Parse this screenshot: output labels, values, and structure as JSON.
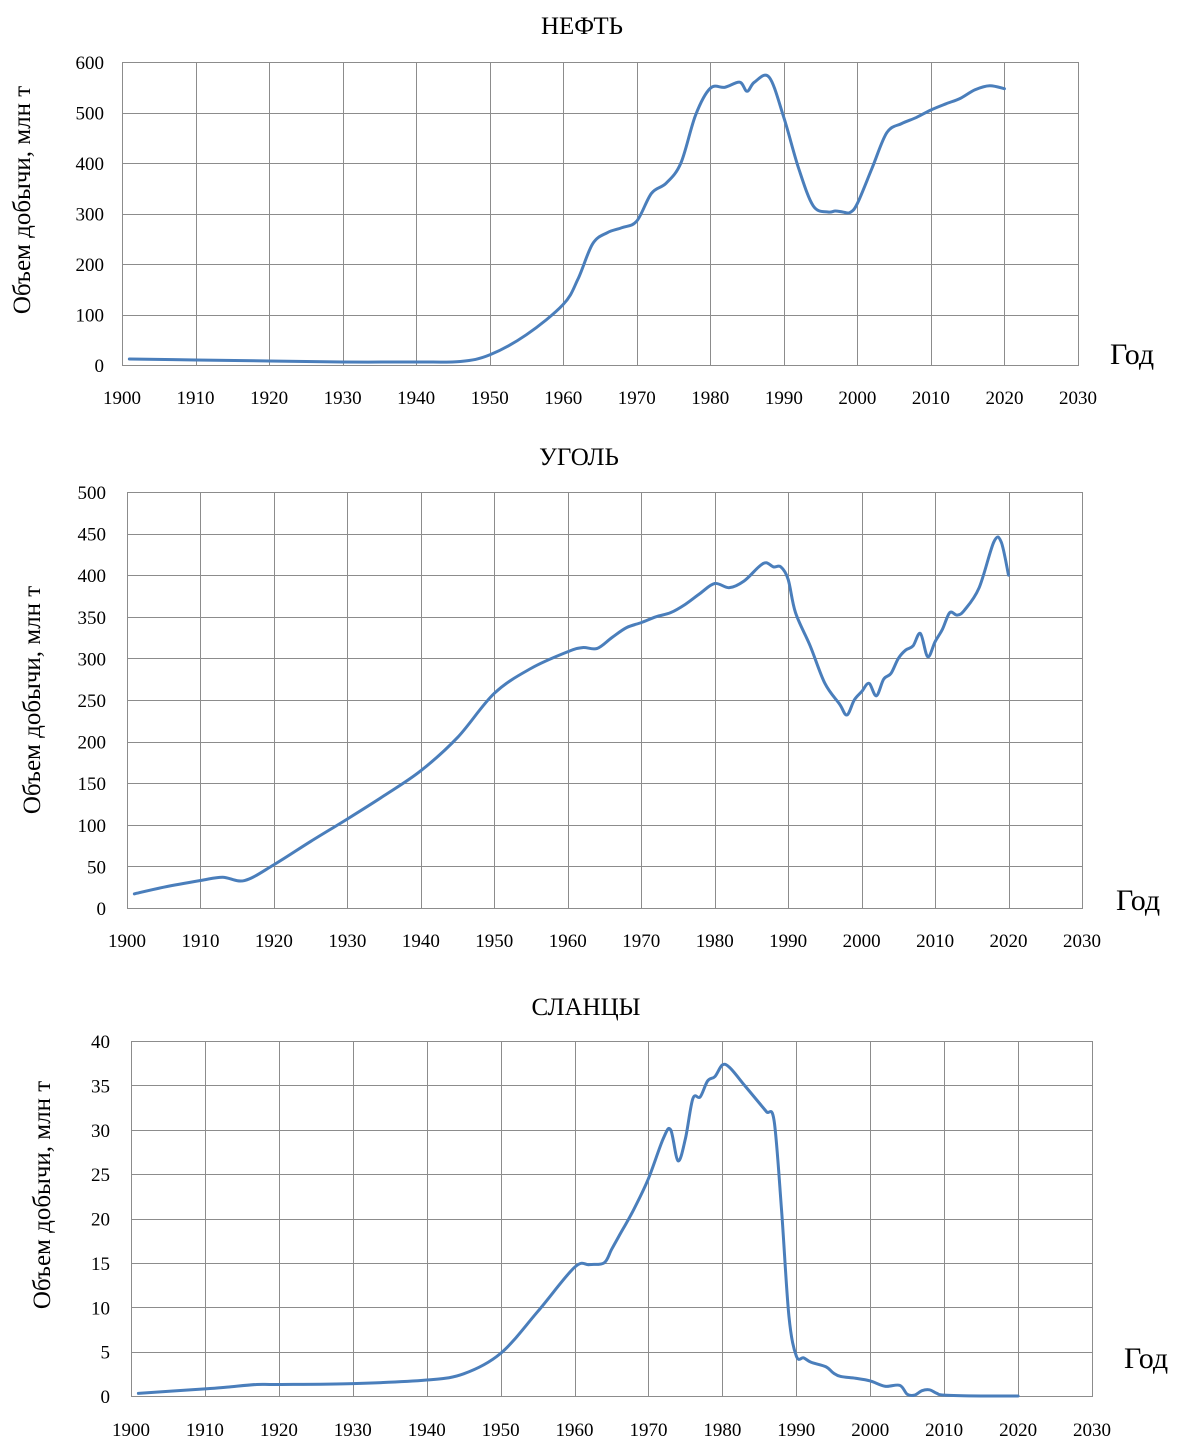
{
  "chart_data": [
    {
      "type": "line",
      "title": "НЕФТЬ",
      "xlabel": "Год",
      "ylabel": "Объем добычи, млн т",
      "xlim": [
        1900,
        2030
      ],
      "ylim": [
        0,
        600
      ],
      "x_ticks": [
        1900,
        1910,
        1920,
        1930,
        1940,
        1950,
        1960,
        1970,
        1980,
        1990,
        2000,
        2010,
        2020,
        2030
      ],
      "y_ticks": [
        0,
        100,
        200,
        300,
        400,
        500,
        600
      ],
      "grid": true,
      "color": "#4a7ebb",
      "series": [
        {
          "x": [
            1901,
            1910,
            1920,
            1930,
            1940,
            1946,
            1950,
            1955,
            1960,
            1962,
            1964,
            1966,
            1968,
            1970,
            1972,
            1974,
            1976,
            1978,
            1980,
            1982,
            1984,
            1985,
            1986,
            1988,
            1990,
            1992,
            1994,
            1996,
            1997,
            1998,
            1999,
            2000,
            2002,
            2004,
            2006,
            2008,
            2010,
            2012,
            2014,
            2016,
            2018,
            2020
          ],
          "y": [
            12,
            10,
            8,
            6,
            6,
            7,
            20,
            60,
            120,
            170,
            240,
            262,
            272,
            285,
            340,
            360,
            400,
            495,
            548,
            550,
            560,
            542,
            560,
            570,
            490,
            390,
            315,
            303,
            305,
            303,
            302,
            320,
            390,
            460,
            478,
            490,
            505,
            517,
            528,
            545,
            553,
            547
          ]
        }
      ]
    },
    {
      "type": "line",
      "title": "УГОЛЬ",
      "xlabel": "Год",
      "ylabel": "Объем добычи, млн т",
      "xlim": [
        1900,
        2030
      ],
      "ylim": [
        0,
        500
      ],
      "x_ticks": [
        1900,
        1910,
        1920,
        1930,
        1940,
        1950,
        1960,
        1970,
        1980,
        1990,
        2000,
        2010,
        2020,
        2030
      ],
      "y_ticks": [
        0,
        50,
        100,
        150,
        200,
        250,
        300,
        350,
        400,
        450,
        500
      ],
      "grid": true,
      "color": "#4a7ebb",
      "series": [
        {
          "x": [
            1901,
            1905,
            1910,
            1913,
            1916,
            1920,
            1925,
            1930,
            1935,
            1940,
            1945,
            1950,
            1955,
            1960,
            1962,
            1964,
            1966,
            1968,
            1970,
            1972,
            1974,
            1976,
            1978,
            1980,
            1982,
            1984,
            1986,
            1987,
            1988,
            1989,
            1990,
            1991,
            1993,
            1995,
            1997,
            1998,
            1999,
            2000,
            2001,
            2002,
            2003,
            2004,
            2005,
            2006,
            2007,
            2008,
            2009,
            2010,
            2011,
            2012,
            2013,
            2014,
            2016,
            2018,
            2019,
            2020
          ],
          "y": [
            17,
            25,
            33,
            37,
            33,
            52,
            80,
            107,
            135,
            165,
            205,
            258,
            288,
            308,
            313,
            312,
            325,
            337,
            343,
            350,
            355,
            365,
            378,
            390,
            385,
            393,
            410,
            415,
            410,
            410,
            395,
            355,
            315,
            270,
            245,
            232,
            250,
            260,
            270,
            255,
            275,
            282,
            300,
            310,
            315,
            330,
            302,
            320,
            335,
            355,
            352,
            358,
            385,
            440,
            440,
            400
          ]
        }
      ]
    },
    {
      "type": "line",
      "title": "СЛАНЦЫ",
      "xlabel": "Год",
      "ylabel": "Объем добычи, млн т",
      "xlim": [
        1900,
        2030
      ],
      "ylim": [
        0,
        40
      ],
      "x_ticks": [
        1900,
        1910,
        1920,
        1930,
        1940,
        1950,
        1960,
        1970,
        1980,
        1990,
        2000,
        2010,
        2020,
        2030
      ],
      "y_ticks": [
        0,
        5,
        10,
        15,
        20,
        25,
        30,
        35,
        40
      ],
      "grid": true,
      "color": "#4a7ebb",
      "series": [
        {
          "x": [
            1901,
            1910,
            1913,
            1917,
            1920,
            1930,
            1940,
            1945,
            1950,
            1955,
            1960,
            1962,
            1964,
            1965,
            1966,
            1968,
            1970,
            1972,
            1973,
            1974,
            1975,
            1976,
            1977,
            1978,
            1979,
            1980,
            1981,
            1983,
            1985,
            1986,
            1987,
            1988,
            1989,
            1990,
            1991,
            1992,
            1994,
            1995,
            1996,
            1998,
            2000,
            2002,
            2004,
            2005,
            2006,
            2007,
            2008,
            2009,
            2010,
            2015,
            2020
          ],
          "y": [
            0.3,
            0.8,
            1.0,
            1.3,
            1.3,
            1.4,
            1.8,
            2.5,
            4.8,
            9.5,
            14.5,
            14.8,
            15.0,
            16.5,
            18.0,
            21.0,
            24.5,
            29.0,
            30.0,
            26.5,
            29.0,
            33.5,
            33.7,
            35.5,
            36.0,
            37.3,
            37.0,
            35.0,
            33.0,
            32.0,
            31.0,
            21.0,
            9.0,
            4.5,
            4.3,
            3.8,
            3.3,
            2.6,
            2.2,
            2.0,
            1.7,
            1.1,
            1.2,
            0.2,
            0.1,
            0.6,
            0.7,
            0.3,
            0.1,
            0.0,
            0.0
          ]
        }
      ]
    }
  ]
}
